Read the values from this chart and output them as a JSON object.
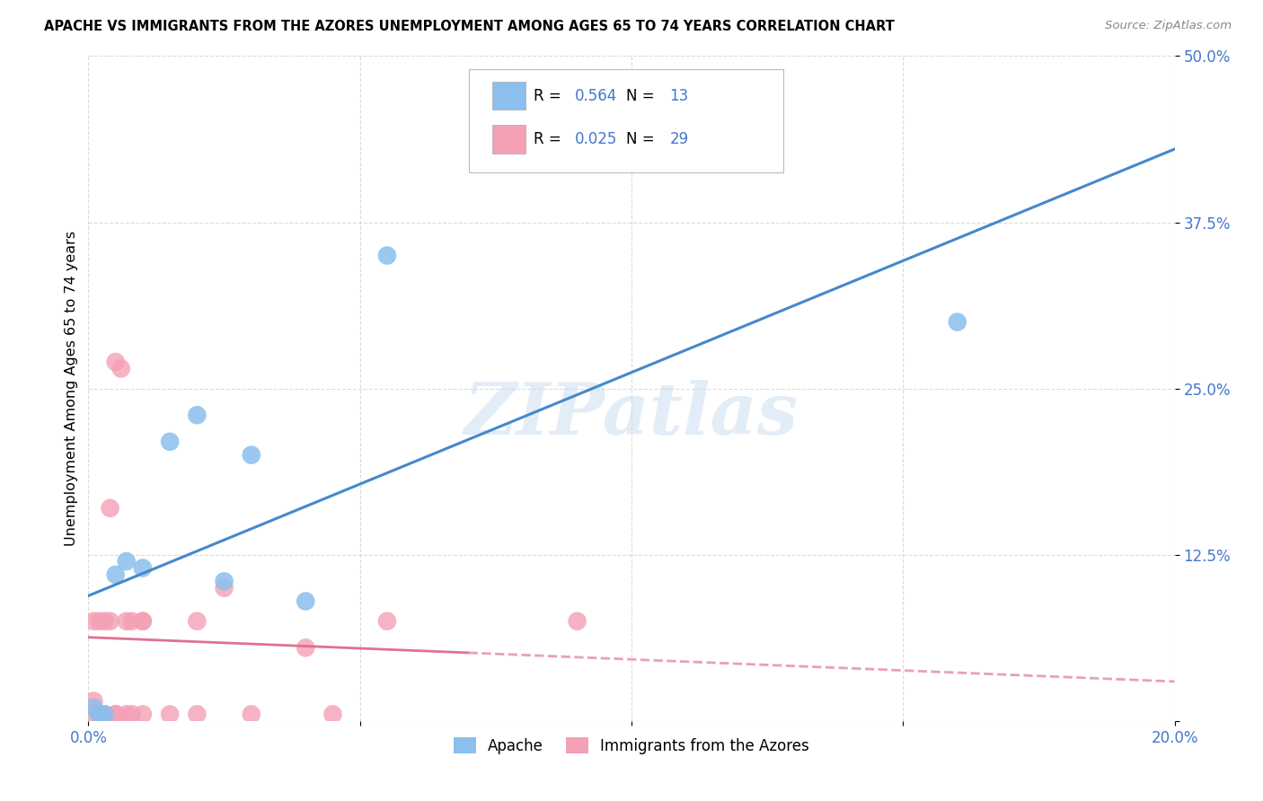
{
  "title": "APACHE VS IMMIGRANTS FROM THE AZORES UNEMPLOYMENT AMONG AGES 65 TO 74 YEARS CORRELATION CHART",
  "source": "Source: ZipAtlas.com",
  "ylabel": "Unemployment Among Ages 65 to 74 years",
  "xlim": [
    0.0,
    0.2
  ],
  "ylim": [
    0.0,
    0.5
  ],
  "xticks": [
    0.0,
    0.05,
    0.1,
    0.15,
    0.2
  ],
  "xticklabels": [
    "0.0%",
    "",
    "",
    "",
    "20.0%"
  ],
  "yticks": [
    0.0,
    0.125,
    0.25,
    0.375,
    0.5
  ],
  "yticklabels": [
    "",
    "12.5%",
    "25.0%",
    "37.5%",
    "50.0%"
  ],
  "apache_color": "#8BBFED",
  "azores_color": "#F4A0B5",
  "apache_line_color": "#4488CC",
  "azores_line_color": "#E07090",
  "azores_line_dash_color": "#E8A0B8",
  "apache_R": 0.564,
  "apache_N": 13,
  "azores_R": 0.025,
  "azores_N": 29,
  "legend_label_apache": "Apache",
  "legend_label_azores": "Immigrants from the Azores",
  "watermark": "ZIPatlas",
  "legend_text_color": "#4477CC",
  "apache_x": [
    0.001,
    0.002,
    0.003,
    0.005,
    0.007,
    0.01,
    0.015,
    0.02,
    0.025,
    0.03,
    0.04,
    0.055,
    0.16
  ],
  "apache_y": [
    0.01,
    0.005,
    0.005,
    0.11,
    0.12,
    0.115,
    0.21,
    0.23,
    0.105,
    0.2,
    0.09,
    0.35,
    0.3
  ],
  "azores_x": [
    0.001,
    0.001,
    0.001,
    0.002,
    0.002,
    0.003,
    0.003,
    0.004,
    0.004,
    0.005,
    0.005,
    0.005,
    0.006,
    0.007,
    0.007,
    0.008,
    0.008,
    0.01,
    0.01,
    0.01,
    0.015,
    0.02,
    0.02,
    0.025,
    0.03,
    0.04,
    0.045,
    0.055,
    0.09
  ],
  "azores_y": [
    0.005,
    0.015,
    0.075,
    0.005,
    0.075,
    0.005,
    0.075,
    0.075,
    0.16,
    0.005,
    0.005,
    0.27,
    0.265,
    0.005,
    0.075,
    0.075,
    0.005,
    0.005,
    0.075,
    0.075,
    0.005,
    0.005,
    0.075,
    0.1,
    0.005,
    0.055,
    0.005,
    0.075,
    0.075
  ]
}
